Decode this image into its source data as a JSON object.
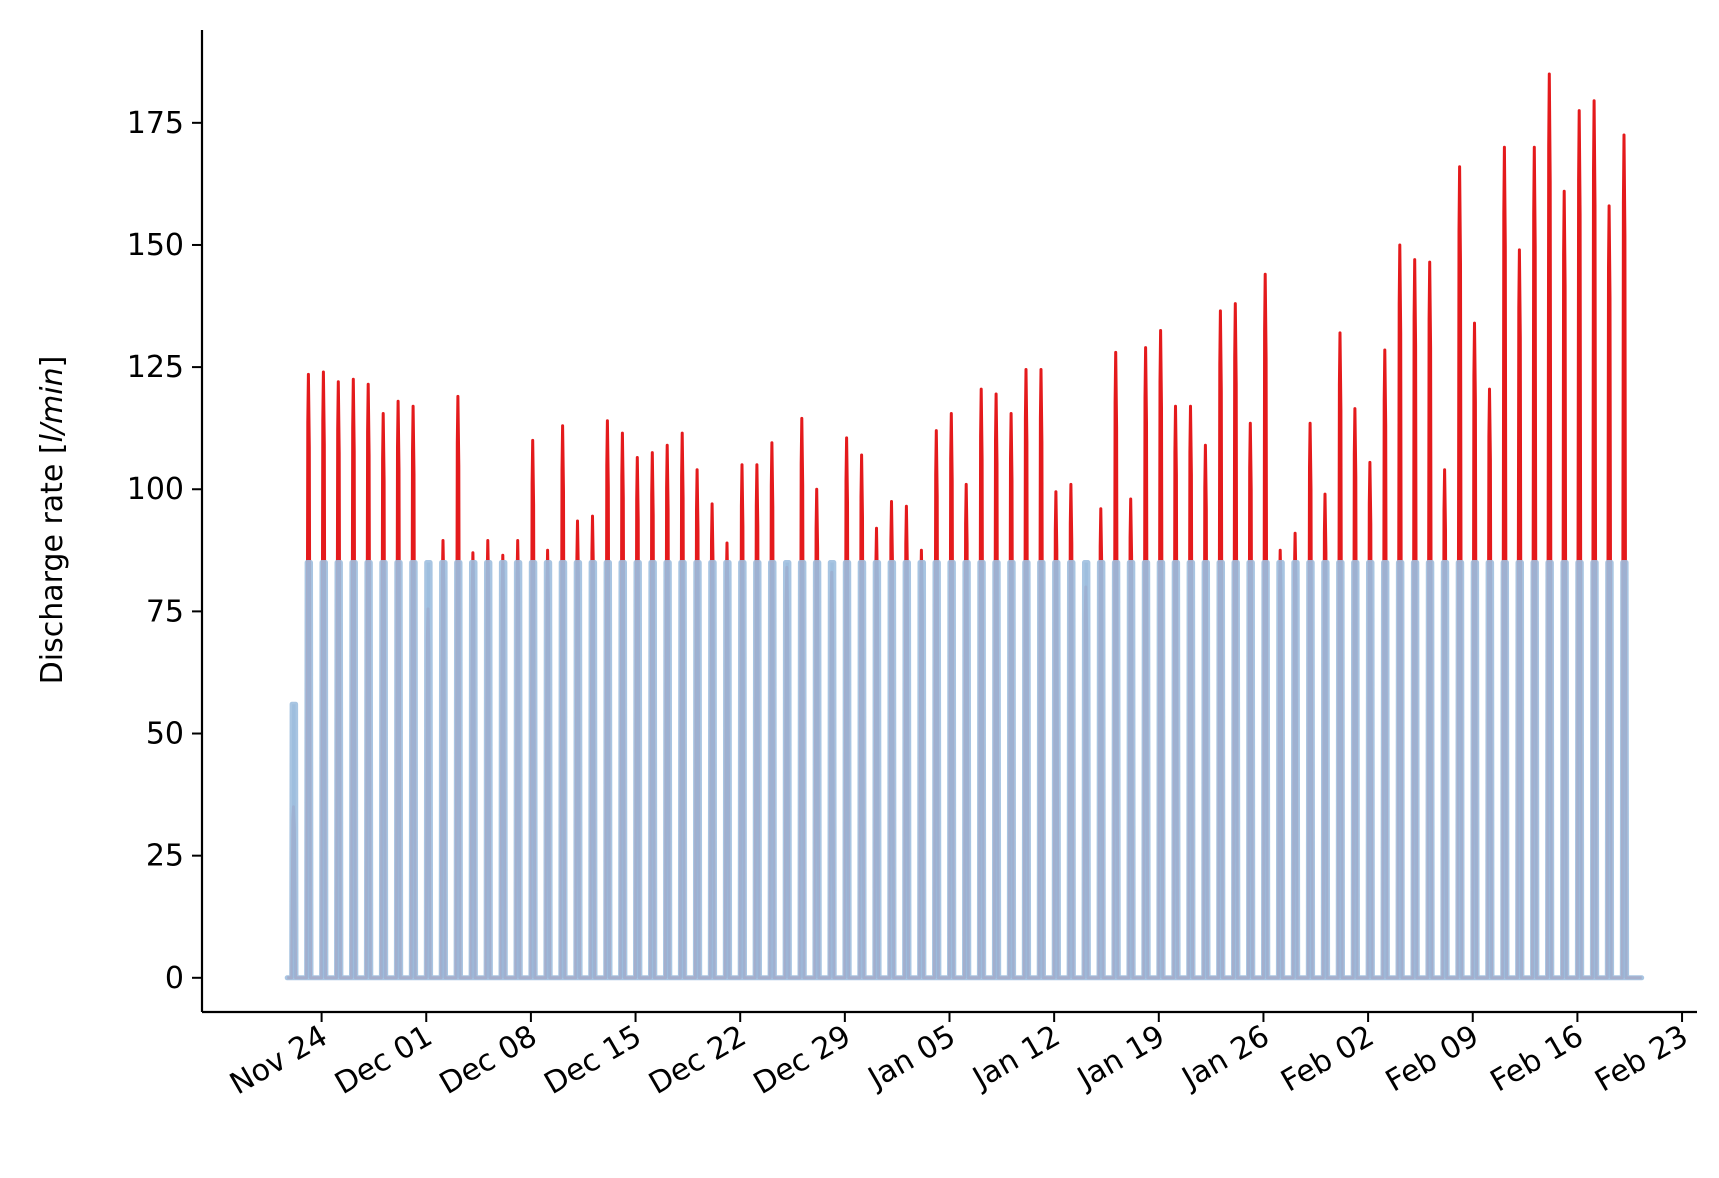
{
  "chart_data": {
    "type": "line",
    "ylabel_plain": "Discharge rate [",
    "ylabel_unit": "l/min",
    "ylabel_close": "]",
    "ylim": [
      -7,
      194
    ],
    "xlim": [
      "2022-11-16",
      "2023-02-24"
    ],
    "grid": false,
    "legend": "none",
    "yticks": [
      0,
      25,
      50,
      75,
      100,
      125,
      150,
      175
    ],
    "xticks": [
      {
        "date": "2022-11-24",
        "label": "Nov 24"
      },
      {
        "date": "2022-12-01",
        "label": "Dec 01"
      },
      {
        "date": "2022-12-08",
        "label": "Dec 08"
      },
      {
        "date": "2022-12-15",
        "label": "Dec 15"
      },
      {
        "date": "2022-12-22",
        "label": "Dec 22"
      },
      {
        "date": "2022-12-29",
        "label": "Dec 29"
      },
      {
        "date": "2023-01-05",
        "label": "Jan 05"
      },
      {
        "date": "2023-01-12",
        "label": "Jan 12"
      },
      {
        "date": "2023-01-19",
        "label": "Jan 19"
      },
      {
        "date": "2023-01-26",
        "label": "Jan 26"
      },
      {
        "date": "2023-02-02",
        "label": "Feb 02"
      },
      {
        "date": "2023-02-09",
        "label": "Feb 09"
      },
      {
        "date": "2023-02-16",
        "label": "Feb 16"
      },
      {
        "date": "2023-02-23",
        "label": "Feb 23"
      }
    ],
    "series": [
      {
        "color": "#e41a1c",
        "peak_dates": [
          "2022-11-22",
          "2022-11-23",
          "2022-11-24",
          "2022-11-25",
          "2022-11-26",
          "2022-11-27",
          "2022-11-28",
          "2022-11-29",
          "2022-11-30",
          "2022-12-01",
          "2022-12-02",
          "2022-12-03",
          "2022-12-04",
          "2022-12-05",
          "2022-12-06",
          "2022-12-07",
          "2022-12-08",
          "2022-12-09",
          "2022-12-10",
          "2022-12-11",
          "2022-12-12",
          "2022-12-13",
          "2022-12-14",
          "2022-12-15",
          "2022-12-16",
          "2022-12-17",
          "2022-12-18",
          "2022-12-19",
          "2022-12-20",
          "2022-12-21",
          "2022-12-22",
          "2022-12-23",
          "2022-12-24",
          "2022-12-25",
          "2022-12-26",
          "2022-12-27",
          "2022-12-28",
          "2022-12-29",
          "2022-12-30",
          "2022-12-31",
          "2023-01-01",
          "2023-01-02",
          "2023-01-03",
          "2023-01-04",
          "2023-01-05",
          "2023-01-06",
          "2023-01-07",
          "2023-01-08",
          "2023-01-09",
          "2023-01-10",
          "2023-01-11",
          "2023-01-12",
          "2023-01-13",
          "2023-01-14",
          "2023-01-15",
          "2023-01-16",
          "2023-01-17",
          "2023-01-18",
          "2023-01-19",
          "2023-01-20",
          "2023-01-21",
          "2023-01-22",
          "2023-01-23",
          "2023-01-24",
          "2023-01-25",
          "2023-01-26",
          "2023-01-27",
          "2023-01-28",
          "2023-01-29",
          "2023-01-30",
          "2023-01-31",
          "2023-02-01",
          "2023-02-02",
          "2023-02-03",
          "2023-02-04",
          "2023-02-05",
          "2023-02-06",
          "2023-02-07",
          "2023-02-08",
          "2023-02-09",
          "2023-02-10",
          "2023-02-11",
          "2023-02-12",
          "2023-02-13",
          "2023-02-14",
          "2023-02-15",
          "2023-02-16",
          "2023-02-17",
          "2023-02-18",
          "2023-02-19",
          "2023-02-20"
        ],
        "peak_values": [
          35,
          123.5,
          124,
          122,
          122.5,
          121.5,
          115.5,
          118,
          117,
          75.5,
          89.5,
          119,
          87,
          89.5,
          86.5,
          89.5,
          110,
          87.5,
          113,
          93.5,
          94.5,
          114,
          111.5,
          106.5,
          107.5,
          109,
          111.5,
          104,
          97,
          89,
          105,
          105,
          109.5,
          84,
          114.5,
          100,
          83,
          110.5,
          107,
          92,
          97.5,
          96.5,
          87.5,
          112,
          115.5,
          101,
          120.5,
          119.5,
          115.5,
          124.5,
          124.5,
          99.5,
          101,
          80,
          96,
          128,
          98,
          129,
          132.5,
          117,
          117,
          109,
          136.5,
          138,
          113.5,
          144,
          87.5,
          91,
          113.5,
          99,
          132,
          116.5,
          105.5,
          128.5,
          150,
          147,
          146.5,
          104,
          166,
          134,
          120.5,
          170,
          149,
          170,
          185,
          161,
          177.5,
          179.5,
          158,
          172.5,
          0
        ]
      },
      {
        "color": "#9fbfdf",
        "peak_dates": [
          "2022-11-22",
          "2022-11-23",
          "2022-11-24",
          "2022-11-25",
          "2022-11-26",
          "2022-11-27",
          "2022-11-28",
          "2022-11-29",
          "2022-11-30",
          "2022-12-01",
          "2022-12-02",
          "2022-12-03",
          "2022-12-04",
          "2022-12-05",
          "2022-12-06",
          "2022-12-07",
          "2022-12-08",
          "2022-12-09",
          "2022-12-10",
          "2022-12-11",
          "2022-12-12",
          "2022-12-13",
          "2022-12-14",
          "2022-12-15",
          "2022-12-16",
          "2022-12-17",
          "2022-12-18",
          "2022-12-19",
          "2022-12-20",
          "2022-12-21",
          "2022-12-22",
          "2022-12-23",
          "2022-12-24",
          "2022-12-25",
          "2022-12-26",
          "2022-12-27",
          "2022-12-28",
          "2022-12-29",
          "2022-12-30",
          "2022-12-31",
          "2023-01-01",
          "2023-01-02",
          "2023-01-03",
          "2023-01-04",
          "2023-01-05",
          "2023-01-06",
          "2023-01-07",
          "2023-01-08",
          "2023-01-09",
          "2023-01-10",
          "2023-01-11",
          "2023-01-12",
          "2023-01-13",
          "2023-01-14",
          "2023-01-15",
          "2023-01-16",
          "2023-01-17",
          "2023-01-18",
          "2023-01-19",
          "2023-01-20",
          "2023-01-21",
          "2023-01-22",
          "2023-01-23",
          "2023-01-24",
          "2023-01-25",
          "2023-01-26",
          "2023-01-27",
          "2023-01-28",
          "2023-01-29",
          "2023-01-30",
          "2023-01-31",
          "2023-02-01",
          "2023-02-02",
          "2023-02-03",
          "2023-02-04",
          "2023-02-05",
          "2023-02-06",
          "2023-02-07",
          "2023-02-08",
          "2023-02-09",
          "2023-02-10",
          "2023-02-11",
          "2023-02-12",
          "2023-02-13",
          "2023-02-14",
          "2023-02-15",
          "2023-02-16",
          "2023-02-17",
          "2023-02-18",
          "2023-02-19",
          "2023-02-20"
        ],
        "peak_values": [
          56,
          85,
          85,
          85,
          85,
          85,
          85,
          85,
          85,
          85,
          85,
          85,
          85,
          85,
          85,
          85,
          85,
          85,
          85,
          85,
          85,
          85,
          85,
          85,
          85,
          85,
          85,
          85,
          85,
          85,
          85,
          85,
          85,
          85,
          85,
          85,
          85,
          85,
          85,
          85,
          85,
          85,
          85,
          85,
          85,
          85,
          85,
          85,
          85,
          85,
          85,
          85,
          85,
          85,
          85,
          85,
          85,
          85,
          85,
          85,
          85,
          85,
          85,
          85,
          85,
          85,
          85,
          85,
          85,
          85,
          85,
          85,
          85,
          85,
          85,
          85,
          85,
          85,
          85,
          85,
          85,
          85,
          85,
          85,
          85,
          85,
          85,
          85,
          85,
          85,
          0
        ]
      }
    ]
  }
}
